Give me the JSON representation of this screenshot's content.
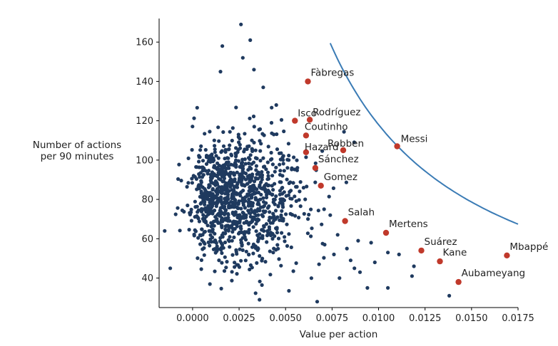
{
  "chart_data": {
    "type": "scatter",
    "title": "",
    "xlabel": "Value per action",
    "ylabel": [
      "Number of actions",
      "per 90 minutes"
    ],
    "xlim": [
      -0.0018,
      0.0175
    ],
    "ylim": [
      25,
      172
    ],
    "xticks": [
      0.0,
      0.0025,
      0.005,
      0.0075,
      0.01,
      0.0125,
      0.015,
      0.0175
    ],
    "xtick_labels": [
      "0.0000",
      "0.0025",
      "0.0050",
      "0.0075",
      "0.0100",
      "0.0125",
      "0.0150",
      "0.0175"
    ],
    "yticks": [
      40,
      60,
      80,
      100,
      120,
      140,
      160
    ],
    "ytick_labels": [
      "40",
      "60",
      "80",
      "100",
      "120",
      "140",
      "160"
    ],
    "grid": false,
    "background_color": "#1f3a5f",
    "highlight_color": "#c0392b",
    "curve_color": "#3a7bb5",
    "highlighted": [
      {
        "name": "Fàbregas",
        "x": 0.0062,
        "y": 140
      },
      {
        "name": "Isco",
        "x": 0.0055,
        "y": 120
      },
      {
        "name": "Rodríguez",
        "x": 0.0063,
        "y": 120.5
      },
      {
        "name": "Coutinho",
        "x": 0.0061,
        "y": 112.5
      },
      {
        "name": "Hazard",
        "x": 0.0061,
        "y": 104
      },
      {
        "name": "Robben",
        "x": 0.0081,
        "y": 105
      },
      {
        "name": "Messi",
        "x": 0.011,
        "y": 107
      },
      {
        "name": "Sánchez",
        "x": 0.0066,
        "y": 96
      },
      {
        "name": "Gomez",
        "x": 0.0069,
        "y": 87
      },
      {
        "name": "Salah",
        "x": 0.0082,
        "y": 69
      },
      {
        "name": "Mertens",
        "x": 0.0104,
        "y": 63
      },
      {
        "name": "Suárez",
        "x": 0.0123,
        "y": 54
      },
      {
        "name": "Mbappé",
        "x": 0.0169,
        "y": 51.5
      },
      {
        "name": "Kane",
        "x": 0.0133,
        "y": 48.5
      },
      {
        "name": "Aubameyang",
        "x": 0.0143,
        "y": 38
      }
    ],
    "curve": {
      "type": "hyperbola",
      "k": 1.18,
      "x_from": 0.0074,
      "x_to": 0.0175
    },
    "background_points": {
      "count": 1050,
      "x_center": 0.0017,
      "x_spread": 0.0016,
      "y_center": 80,
      "y_spread": 16,
      "outliers": [
        [
          0.0026,
          169
        ],
        [
          0.0031,
          161
        ],
        [
          0.0016,
          158
        ],
        [
          0.0027,
          152
        ],
        [
          0.0033,
          146
        ],
        [
          0.0038,
          137
        ],
        [
          0.0015,
          145
        ],
        [
          0.0045,
          128
        ],
        [
          -0.0015,
          64
        ],
        [
          -0.0012,
          45
        ],
        [
          0.0036,
          29
        ],
        [
          0.0067,
          28
        ],
        [
          0.0094,
          35
        ],
        [
          0.0105,
          35
        ],
        [
          0.0138,
          31
        ],
        [
          0.0119,
          46
        ],
        [
          0.0105,
          53
        ],
        [
          0.0089,
          59
        ],
        [
          0.0096,
          58
        ],
        [
          0.0085,
          49
        ],
        [
          0.0111,
          52
        ],
        [
          0.0118,
          41
        ],
        [
          0.009,
          43
        ],
        [
          0.0074,
          72
        ],
        [
          0.0078,
          62
        ],
        [
          0.0071,
          57
        ],
        [
          0.0068,
          47
        ],
        [
          0.0079,
          40
        ],
        [
          0.0087,
          45
        ],
        [
          0.0076,
          52
        ],
        [
          0.0083,
          55
        ],
        [
          0.0098,
          48
        ]
      ]
    }
  }
}
